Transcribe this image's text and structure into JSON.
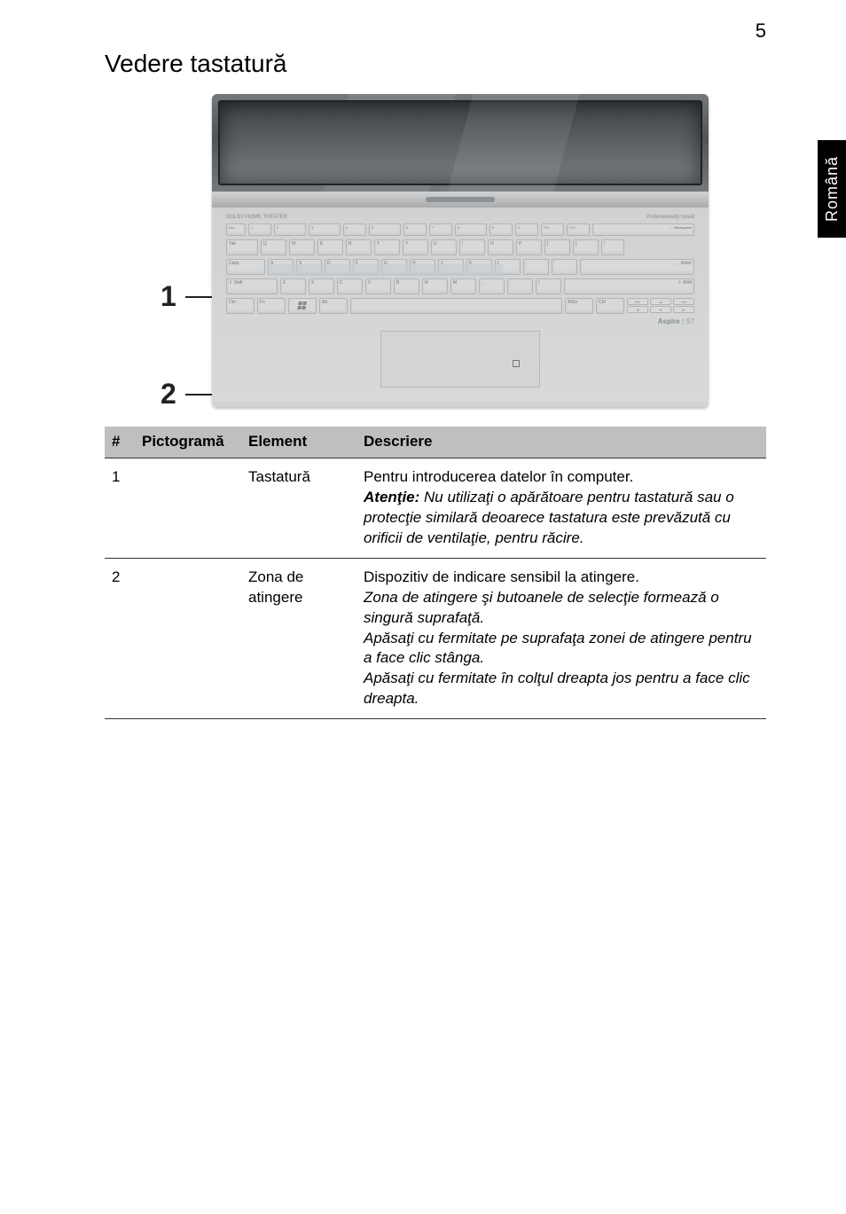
{
  "page_number": "5",
  "side_tab": "Română",
  "section_title": "Vedere tastatură",
  "laptop": {
    "deck_left_label": "DOLBY HOME THEATER",
    "deck_right_label": "Professionally tuned",
    "brand_prefix": "Aspire",
    "brand_model": " | S7",
    "rows": {
      "r1": [
        "Esc",
        "1",
        "2",
        "3",
        "4",
        "5",
        "6",
        "7",
        "8",
        "9",
        "0",
        "F11",
        "F12",
        "← Backspace"
      ],
      "r2": [
        "Tab",
        "Q",
        "W",
        "E",
        "R",
        "T",
        "Y",
        "U",
        "I",
        "O",
        "P",
        "[",
        "]",
        "\\"
      ],
      "r3": [
        "Caps",
        "A",
        "S",
        "D",
        "F",
        "G",
        "H",
        "J",
        "K",
        "L",
        ";",
        "'",
        "← Enter"
      ],
      "r4": [
        "⇧ Shift",
        "Z",
        "X",
        "C",
        "V",
        "B",
        "N",
        "M",
        ",",
        ".",
        "/",
        "⇧ Shift"
      ],
      "r5": [
        "Ctrl",
        "Fn",
        "",
        "Alt",
        " ",
        "AltGr",
        "Ctrl"
      ]
    },
    "arrows": {
      "l": "◄",
      "u": "▲",
      "d": "▼",
      "r": "►"
    },
    "arrow_side": [
      "Prv",
      "Nxt"
    ]
  },
  "callouts": {
    "c1": "1",
    "c2": "2"
  },
  "table": {
    "headers": {
      "hash": "#",
      "icon": "Pictogramă",
      "elem": "Element",
      "desc": "Descriere"
    },
    "rows": [
      {
        "num": "1",
        "icon": "",
        "elem": "Tastatură",
        "desc_plain": "Pentru introducerea datelor în computer.",
        "desc_em_lead": "Atenţie:",
        "desc_em_rest": " Nu utilizaţi o apărătoare pentru tastatură sau o protecţie similară deoarece tastatura este prevăzută cu orificii de ventilaţie, pentru răcire."
      },
      {
        "num": "2",
        "icon": "",
        "elem": "Zona de atingere",
        "desc_plain": "Dispozitiv de indicare sensibil la atingere.",
        "desc_em_rest": "Zona de atingere şi butoanele de selecţie formează o singură suprafaţă.\nApăsaţi cu fermitate pe suprafaţa zonei de atingere pentru a face clic stânga.\nApăsaţi cu fermitate în colţul dreapta jos pentru a face clic dreapta."
      }
    ]
  }
}
